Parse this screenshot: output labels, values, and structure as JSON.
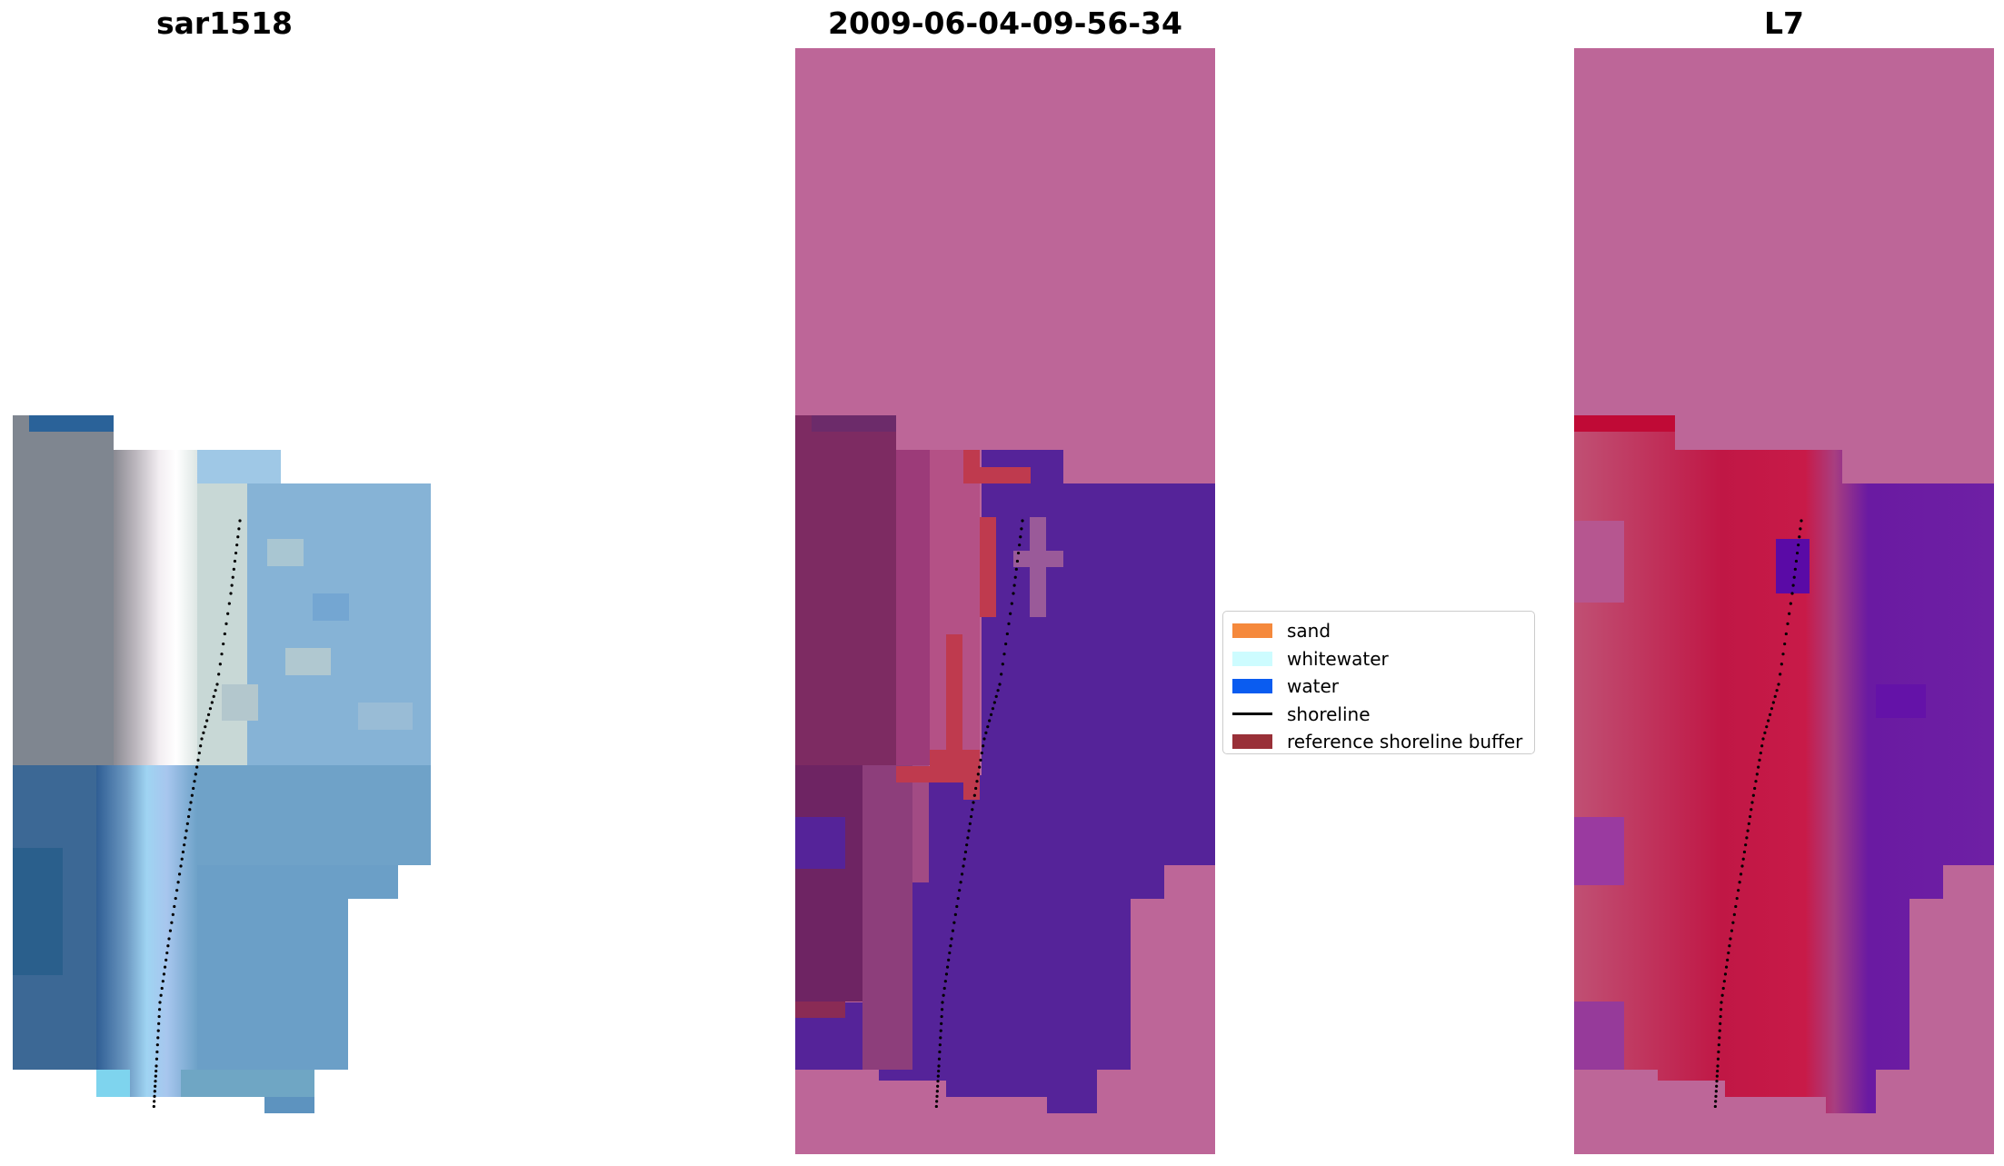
{
  "panels": [
    {
      "key": "rgb",
      "title": "sar1518"
    },
    {
      "key": "classified",
      "title": "2009-06-04-09-56-34"
    },
    {
      "key": "index",
      "title": "L7"
    }
  ],
  "legend": {
    "items": [
      {
        "label": "sand",
        "color": "#f5893c",
        "kind": "patch"
      },
      {
        "label": "whitewater",
        "color": "#cdfcff",
        "kind": "patch"
      },
      {
        "label": "water",
        "color": "#0a5cf0",
        "kind": "patch"
      },
      {
        "label": "shoreline",
        "color": "#000000",
        "kind": "line"
      },
      {
        "label": "reference shoreline buffer",
        "color": "#993038",
        "kind": "patch"
      }
    ]
  },
  "colors": {
    "nodata_pink": "#bd6698",
    "water_purple": "#552399",
    "sand_dark": "#7d2b62",
    "buffer_red": "#bf3a4e",
    "index_red": "#c01745",
    "index_purple": "#6a1aa2",
    "rgb_grey": "#8a8c96",
    "rgb_blue": "#6da0c8",
    "rgb_white": "#eef0f0"
  }
}
